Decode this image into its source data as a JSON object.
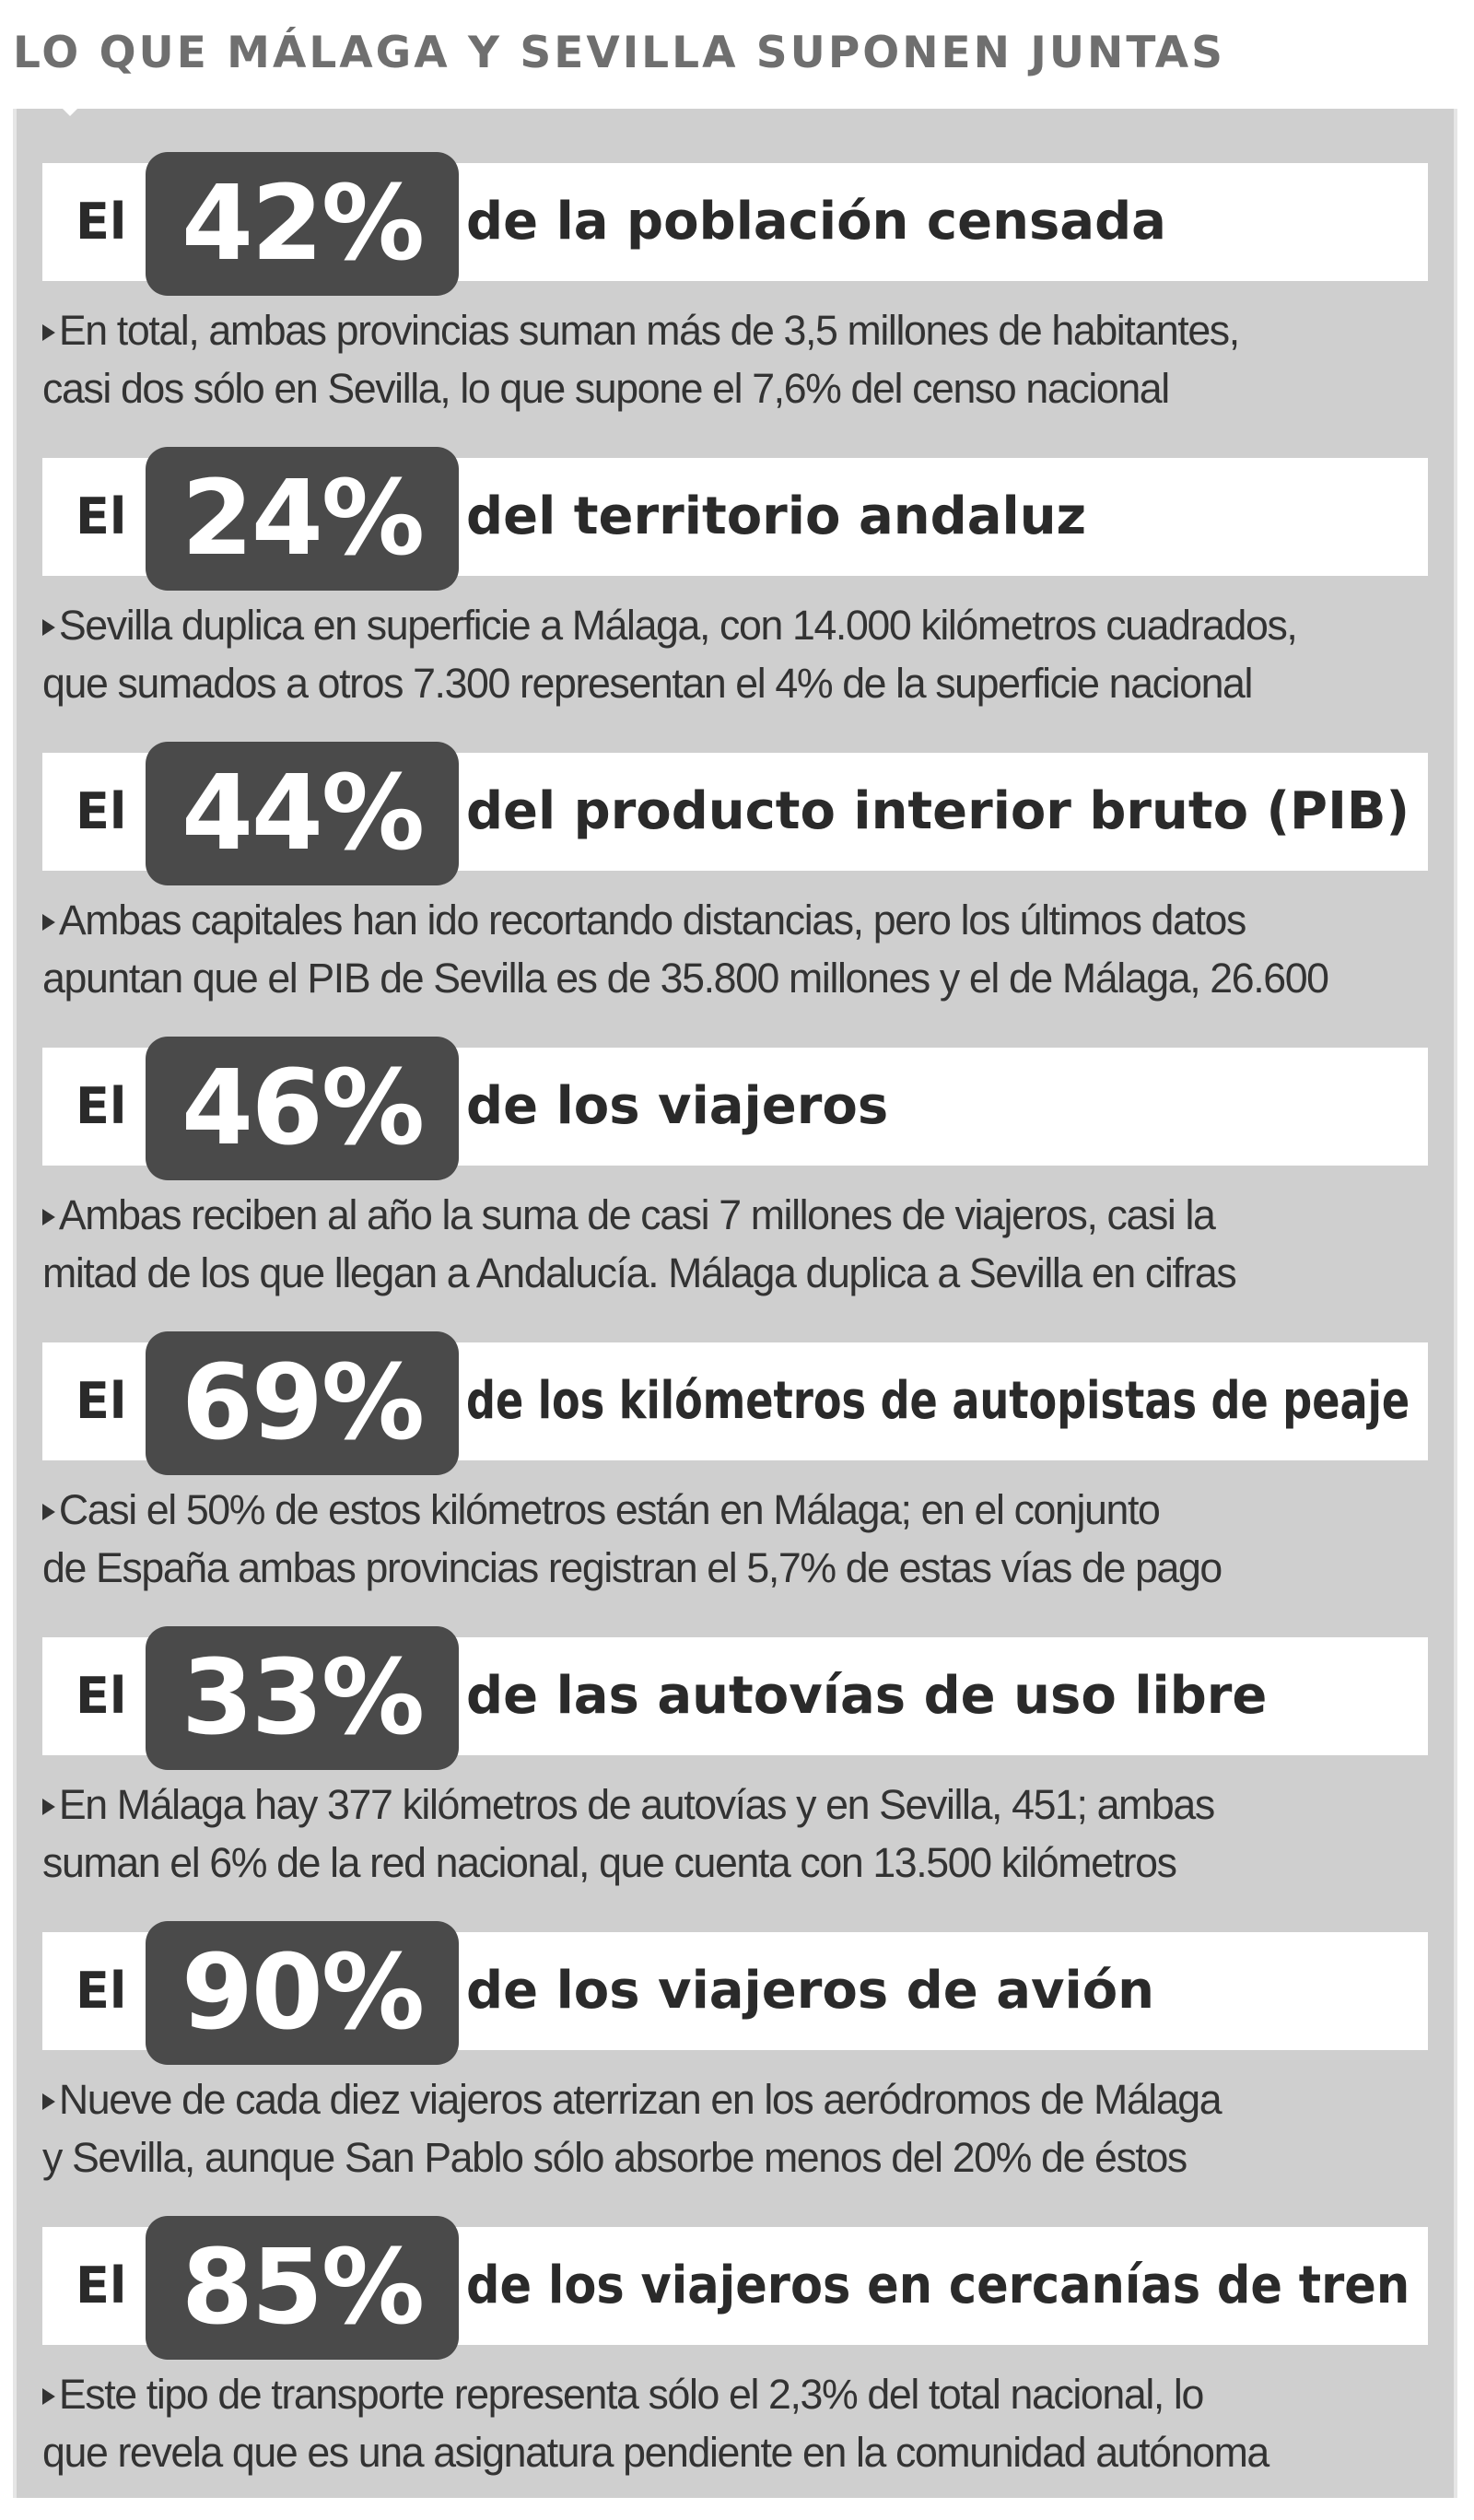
{
  "header": {
    "title": "LO QUE MÁLAGA Y SEVILLA SUPONEN JUNTAS"
  },
  "stats": [
    {
      "prefix": "El",
      "percent": "42%",
      "label": "de la población censada",
      "desc_lines": [
        "En total, ambas provincias suman más de 3,5 millones de habitantes,",
        "casi dos sólo en Sevilla, lo que supone el 7,6% del censo nacional"
      ]
    },
    {
      "prefix": "El",
      "percent": "24%",
      "label": "del territorio andaluz",
      "desc_lines": [
        "Sevilla duplica en superficie a Málaga, con 14.000 kilómetros cuadrados,",
        "que sumados a otros 7.300 representan el 4% de la superficie nacional"
      ]
    },
    {
      "prefix": "El",
      "percent": "44%",
      "label": "del producto interior bruto (PIB)",
      "desc_lines": [
        "Ambas capitales han ido recortando distancias, pero los últimos datos",
        "apuntan que el PIB de Sevilla es de 35.800 millones y el de Málaga, 26.600"
      ]
    },
    {
      "prefix": "El",
      "percent": "46%",
      "label": "de los viajeros",
      "desc_lines": [
        "Ambas reciben al año la suma de casi 7 millones de viajeros, casi la",
        "mitad de los que llegan a Andalucía. Málaga duplica a Sevilla en cifras"
      ]
    },
    {
      "prefix": "El",
      "percent": "69%",
      "label": "de los kilómetros de autopistas de peaje",
      "desc_lines": [
        "Casi el 50% de estos kilómetros están en Málaga; en el conjunto",
        "de España ambas provincias registran el 5,7% de estas vías de pago"
      ]
    },
    {
      "prefix": "El",
      "percent": "33%",
      "label": "de las autovías de uso libre",
      "desc_lines": [
        "En Málaga hay 377 kilómetros de autovías y en Sevilla, 451; ambas",
        "suman el 6% de la red nacional, que cuenta con 13.500 kilómetros"
      ]
    },
    {
      "prefix": "El",
      "percent": "90%",
      "label": "de los viajeros de avión",
      "desc_lines": [
        "Nueve de cada diez viajeros aterrizan en los aeródromos de Málaga",
        "y Sevilla, aunque San Pablo sólo absorbe menos del 20% de éstos"
      ]
    },
    {
      "prefix": "El",
      "percent": "85%",
      "label": "de los viajeros en cercanías de tren",
      "desc_lines": [
        "Este tipo de transporte representa sólo el 2,3% del total nacional, lo",
        "que revela que es una asignatura pendiente en la comunidad autónoma"
      ]
    }
  ]
}
